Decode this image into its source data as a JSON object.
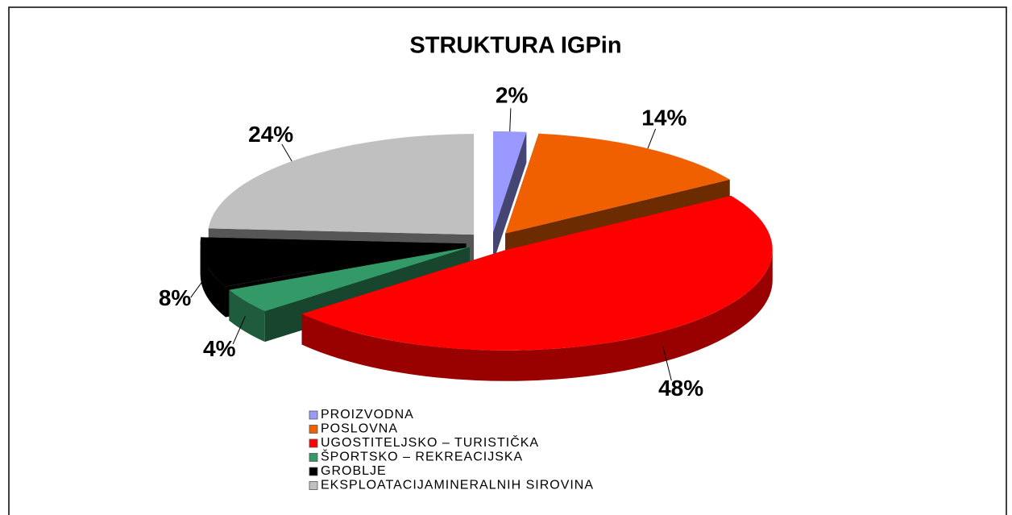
{
  "chart_data": {
    "type": "pie",
    "title": "STRUKTURA IGPin",
    "categories": [
      "PROIZVODNA",
      "POSLOVNA",
      "UGOSTITELJSKO – TURISTIČKA",
      "ŠPORTSKO – REKREACIJSKA",
      "GROBLJE",
      "EKSPLOATACIJAMINERALNIH SIROVINA"
    ],
    "values": [
      2,
      14,
      48,
      4,
      8,
      24
    ],
    "value_labels": [
      "2%",
      "14%",
      "48%",
      "4%",
      "8%",
      "24%"
    ],
    "colors": [
      "#9999ff",
      "#f06000",
      "#ff0000",
      "#339966",
      "#000000",
      "#c0c0c0"
    ]
  }
}
